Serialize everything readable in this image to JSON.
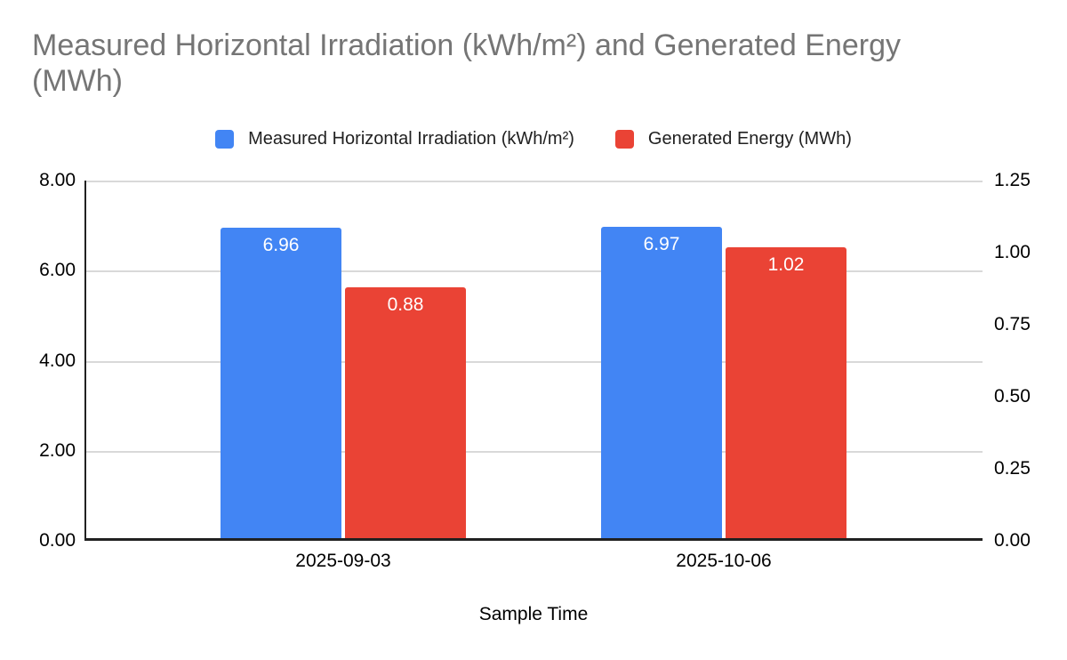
{
  "chart_data": {
    "type": "bar",
    "title": "Measured Horizontal Irradiation (kWh/m²) and Generated Energy (MWh)",
    "xlabel": "Sample Time",
    "ylabel_left": "",
    "ylabel_right": "",
    "categories": [
      "2025-09-03",
      "2025-10-06"
    ],
    "series": [
      {
        "name": "Measured Horizontal Irradiation (kWh/m²)",
        "axis": "left",
        "color": "#4285F4",
        "values": [
          6.96,
          6.97
        ],
        "data_labels": [
          "6.96",
          "6.97"
        ]
      },
      {
        "name": "Generated Energy (MWh)",
        "axis": "right",
        "color": "#EA4335",
        "values": [
          0.88,
          1.02
        ],
        "data_labels": [
          "0.88",
          "1.02"
        ]
      }
    ],
    "left_axis": {
      "min": 0,
      "max": 8,
      "ticks": [
        "0.00",
        "2.00",
        "4.00",
        "6.00",
        "8.00"
      ]
    },
    "right_axis": {
      "min": 0,
      "max": 1.25,
      "ticks": [
        "0.00",
        "0.25",
        "0.50",
        "0.75",
        "1.00",
        "1.25"
      ]
    },
    "legend_position": "top",
    "grid": true,
    "colors": {
      "title_text": "#757575",
      "axis_text": "#000000",
      "legend_text": "#212121",
      "gridline": "#d9d9d9",
      "axis_line": "#212121",
      "bar_label_text": "#ffffff",
      "background": "#ffffff"
    }
  }
}
